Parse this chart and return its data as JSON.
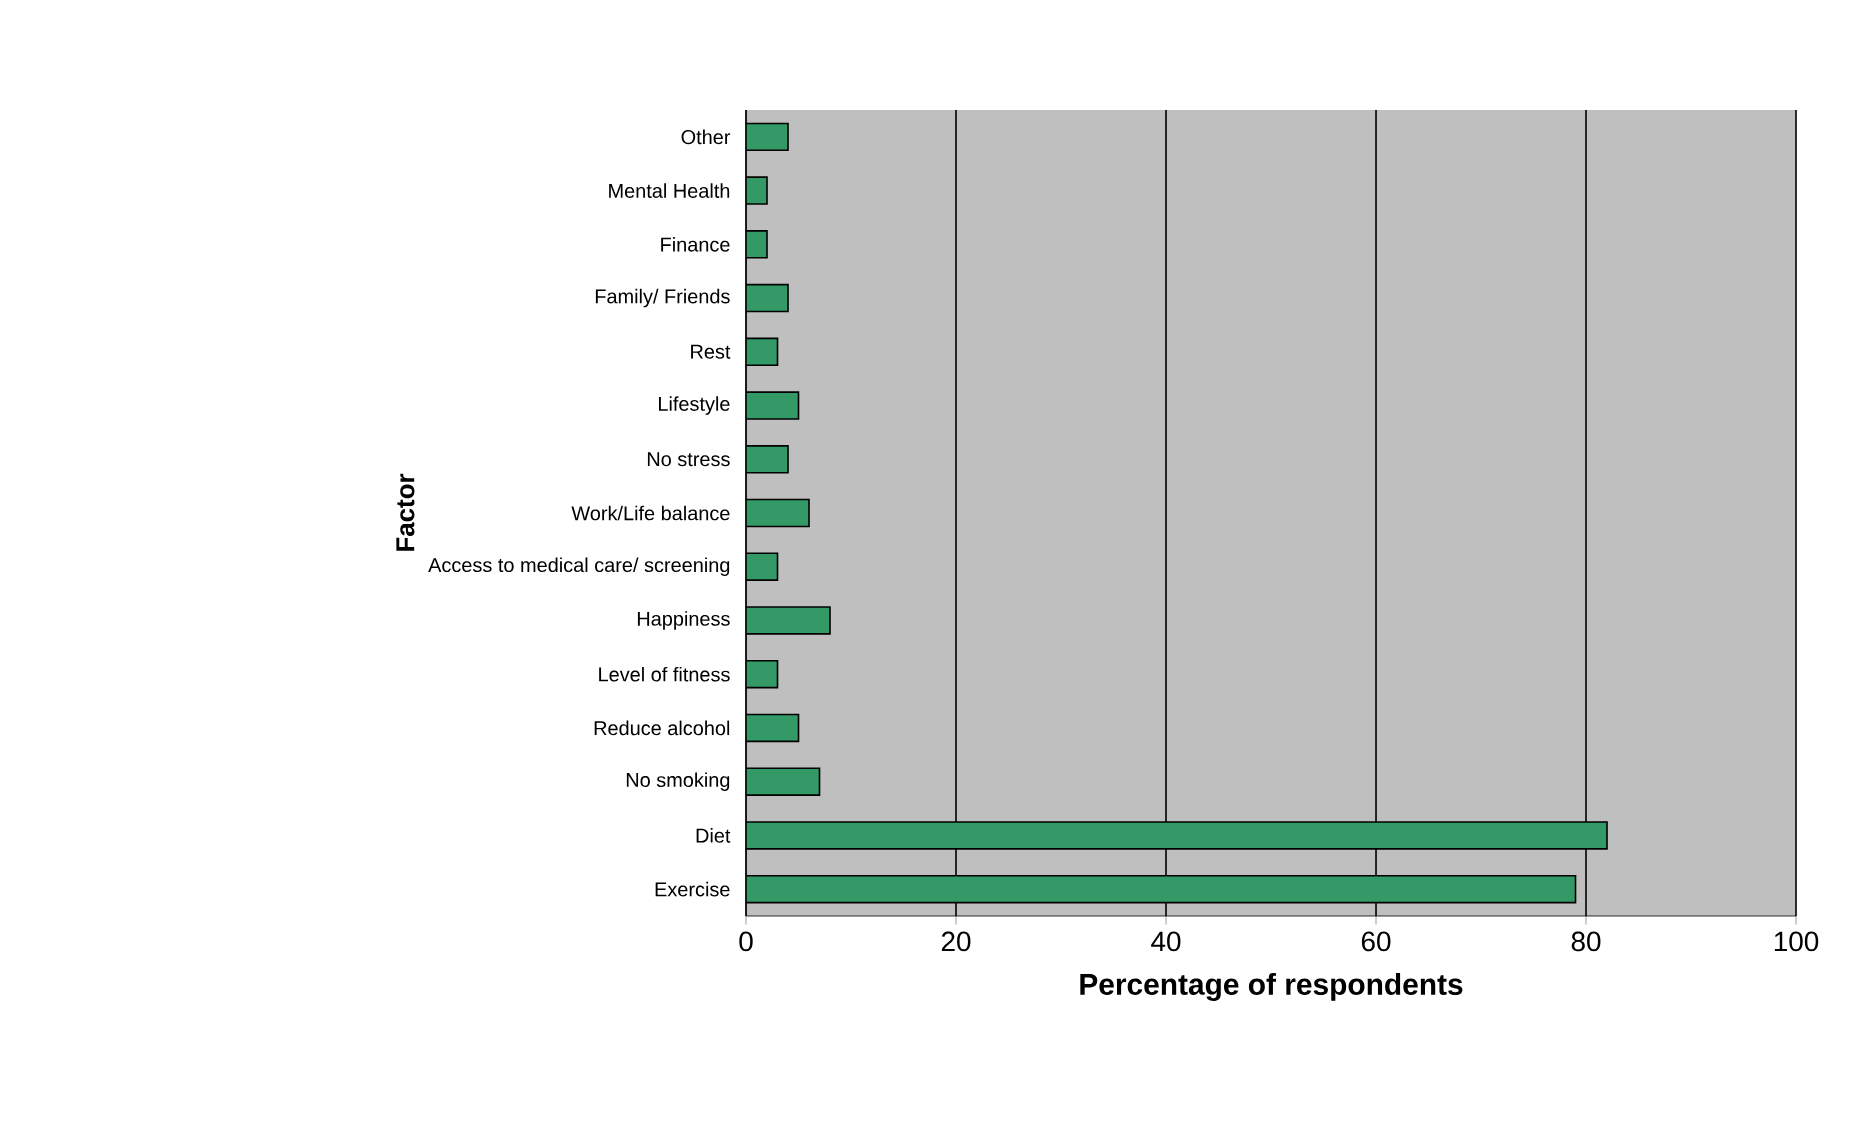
{
  "chart_data": {
    "type": "bar",
    "orientation": "horizontal",
    "xlabel": "Percentage of respondents",
    "ylabel": "Factor",
    "categories": [
      "Other",
      "Mental Health",
      "Finance",
      "Family/ Friends",
      "Rest",
      "Lifestyle",
      "No stress",
      "Work/Life balance",
      "Access to medical care/ screening",
      "Happiness",
      "Level of fitness",
      "Reduce alcohol",
      "No smoking",
      "Diet",
      "Exercise"
    ],
    "values": [
      4,
      2,
      2,
      4,
      3,
      5,
      4,
      6,
      3,
      8,
      3,
      5,
      7,
      82,
      79
    ],
    "color": "#339966",
    "xlim": [
      0,
      100
    ],
    "xticks": [
      0,
      20,
      40,
      60,
      80,
      100
    ],
    "grid": "x"
  }
}
